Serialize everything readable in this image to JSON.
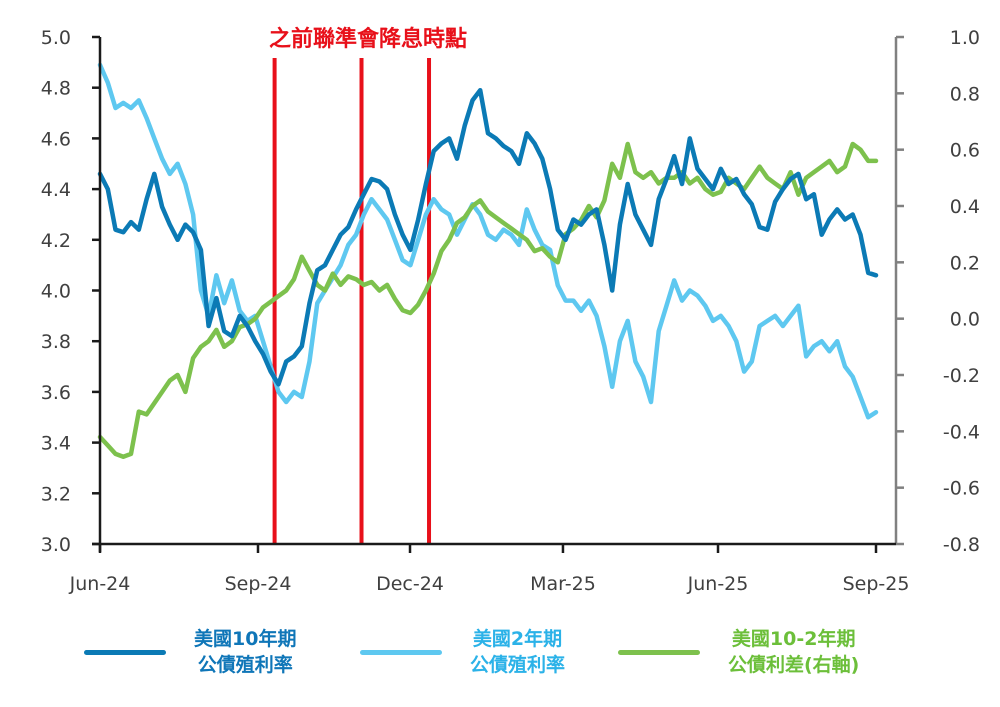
{
  "chart_data": {
    "type": "line",
    "title": "",
    "annotation": "之前聯準會降息時點",
    "xlabel": "",
    "ylabel_left": "",
    "ylabel_right": "",
    "x_ticks": [
      "Jun-24",
      "Sep-24",
      "Dec-24",
      "Mar-25",
      "Jun-25",
      "Sep-25"
    ],
    "y_left": {
      "range": [
        3.0,
        5.0
      ],
      "ticks": [
        "5.0",
        "4.8",
        "4.6",
        "4.4",
        "4.2",
        "4.0",
        "3.8",
        "3.6",
        "3.4",
        "3.2",
        "3.0"
      ]
    },
    "y_right": {
      "range": [
        -0.8,
        1.0
      ],
      "ticks": [
        "1.0",
        "0.8",
        "0.6",
        "0.4",
        "0.2",
        "0.0",
        "-0.2",
        "-0.4",
        "-0.6",
        "-0.8"
      ]
    },
    "fed_cut_markers": [
      "Sep-24 (mid)",
      "Nov-24 (early)",
      "Dec-24 (mid)"
    ],
    "fed_cut_marker_t": [
      0.225,
      0.337,
      0.424
    ],
    "grid": false,
    "legend_position": "bottom",
    "series": [
      {
        "name": "美國10年期公債殖利率",
        "axis": "left",
        "color": "#0b7ab5",
        "t": [
          0.0,
          0.01,
          0.02,
          0.03,
          0.04,
          0.05,
          0.06,
          0.07,
          0.08,
          0.09,
          0.1,
          0.11,
          0.12,
          0.13,
          0.14,
          0.15,
          0.16,
          0.17,
          0.18,
          0.19,
          0.2,
          0.21,
          0.22,
          0.23,
          0.24,
          0.25,
          0.26,
          0.27,
          0.28,
          0.29,
          0.3,
          0.31,
          0.32,
          0.33,
          0.34,
          0.35,
          0.36,
          0.37,
          0.38,
          0.39,
          0.4,
          0.41,
          0.42,
          0.43,
          0.44,
          0.45,
          0.46,
          0.47,
          0.48,
          0.49,
          0.5,
          0.51,
          0.52,
          0.53,
          0.54,
          0.55,
          0.56,
          0.57,
          0.58,
          0.59,
          0.6,
          0.61,
          0.62,
          0.63,
          0.64,
          0.65,
          0.66,
          0.67,
          0.68,
          0.69,
          0.7,
          0.71,
          0.72,
          0.73,
          0.74,
          0.75,
          0.76,
          0.77,
          0.78,
          0.79,
          0.8,
          0.81,
          0.82,
          0.83,
          0.84,
          0.85,
          0.86,
          0.87,
          0.88,
          0.89,
          0.9,
          0.91,
          0.92,
          0.93,
          0.94,
          0.95,
          0.96,
          0.97,
          0.98,
          0.99,
          1.0
        ],
        "values": [
          4.46,
          4.4,
          4.24,
          4.23,
          4.27,
          4.24,
          4.36,
          4.46,
          4.33,
          4.26,
          4.2,
          4.26,
          4.23,
          4.16,
          3.86,
          3.97,
          3.84,
          3.82,
          3.9,
          3.86,
          3.8,
          3.75,
          3.68,
          3.63,
          3.72,
          3.74,
          3.78,
          3.95,
          4.08,
          4.1,
          4.16,
          4.22,
          4.25,
          4.32,
          4.38,
          4.44,
          4.43,
          4.4,
          4.3,
          4.22,
          4.16,
          4.28,
          4.42,
          4.55,
          4.58,
          4.6,
          4.52,
          4.65,
          4.75,
          4.79,
          4.62,
          4.6,
          4.57,
          4.55,
          4.5,
          4.62,
          4.58,
          4.52,
          4.4,
          4.24,
          4.2,
          4.28,
          4.26,
          4.3,
          4.32,
          4.18,
          4.0,
          4.26,
          4.42,
          4.3,
          4.24,
          4.18,
          4.36,
          4.44,
          4.53,
          4.42,
          4.6,
          4.48,
          4.44,
          4.4,
          4.48,
          4.42,
          4.44,
          4.38,
          4.34,
          4.25,
          4.24,
          4.35,
          4.4,
          4.44,
          4.46,
          4.36,
          4.38,
          4.22,
          4.28,
          4.32,
          4.28,
          4.3,
          4.22,
          4.07,
          4.06
        ]
      },
      {
        "name": "美國2年期公債殖利率",
        "axis": "left",
        "color": "#5ec8f0",
        "t": [
          0.0,
          0.01,
          0.02,
          0.03,
          0.04,
          0.05,
          0.06,
          0.07,
          0.08,
          0.09,
          0.1,
          0.11,
          0.12,
          0.13,
          0.14,
          0.15,
          0.16,
          0.17,
          0.18,
          0.19,
          0.2,
          0.21,
          0.22,
          0.23,
          0.24,
          0.25,
          0.26,
          0.27,
          0.28,
          0.29,
          0.3,
          0.31,
          0.32,
          0.33,
          0.34,
          0.35,
          0.36,
          0.37,
          0.38,
          0.39,
          0.4,
          0.41,
          0.42,
          0.43,
          0.44,
          0.45,
          0.46,
          0.47,
          0.48,
          0.49,
          0.5,
          0.51,
          0.52,
          0.53,
          0.54,
          0.55,
          0.56,
          0.57,
          0.58,
          0.59,
          0.6,
          0.61,
          0.62,
          0.63,
          0.64,
          0.65,
          0.66,
          0.67,
          0.68,
          0.69,
          0.7,
          0.71,
          0.72,
          0.73,
          0.74,
          0.75,
          0.76,
          0.77,
          0.78,
          0.79,
          0.8,
          0.81,
          0.82,
          0.83,
          0.84,
          0.85,
          0.86,
          0.87,
          0.88,
          0.89,
          0.9,
          0.91,
          0.92,
          0.93,
          0.94,
          0.95,
          0.96,
          0.97,
          0.98,
          0.99,
          1.0
        ],
        "values": [
          4.89,
          4.82,
          4.72,
          4.74,
          4.72,
          4.75,
          4.68,
          4.6,
          4.52,
          4.46,
          4.5,
          4.42,
          4.3,
          4.0,
          3.9,
          4.06,
          3.95,
          4.04,
          3.92,
          3.88,
          3.9,
          3.8,
          3.7,
          3.6,
          3.56,
          3.6,
          3.58,
          3.72,
          3.95,
          4.0,
          4.05,
          4.1,
          4.18,
          4.22,
          4.3,
          4.36,
          4.32,
          4.28,
          4.2,
          4.12,
          4.1,
          4.2,
          4.3,
          4.36,
          4.32,
          4.3,
          4.22,
          4.28,
          4.34,
          4.3,
          4.22,
          4.2,
          4.24,
          4.22,
          4.18,
          4.32,
          4.24,
          4.18,
          4.16,
          4.02,
          3.96,
          3.96,
          3.92,
          3.96,
          3.9,
          3.78,
          3.62,
          3.8,
          3.88,
          3.72,
          3.66,
          3.56,
          3.84,
          3.94,
          4.04,
          3.96,
          4.0,
          3.98,
          3.94,
          3.88,
          3.9,
          3.86,
          3.8,
          3.68,
          3.72,
          3.86,
          3.88,
          3.9,
          3.86,
          3.9,
          3.94,
          3.74,
          3.78,
          3.8,
          3.76,
          3.8,
          3.7,
          3.66,
          3.58,
          3.5,
          3.52
        ]
      },
      {
        "name": "美國10-2年期公債利差(右軸)",
        "axis": "right",
        "color": "#7dc14d",
        "t": [
          0.0,
          0.01,
          0.02,
          0.03,
          0.04,
          0.05,
          0.06,
          0.07,
          0.08,
          0.09,
          0.1,
          0.11,
          0.12,
          0.13,
          0.14,
          0.15,
          0.16,
          0.17,
          0.18,
          0.19,
          0.2,
          0.21,
          0.22,
          0.23,
          0.24,
          0.25,
          0.26,
          0.27,
          0.28,
          0.29,
          0.3,
          0.31,
          0.32,
          0.33,
          0.34,
          0.35,
          0.36,
          0.37,
          0.38,
          0.39,
          0.4,
          0.41,
          0.42,
          0.43,
          0.44,
          0.45,
          0.46,
          0.47,
          0.48,
          0.49,
          0.5,
          0.51,
          0.52,
          0.53,
          0.54,
          0.55,
          0.56,
          0.57,
          0.58,
          0.59,
          0.6,
          0.61,
          0.62,
          0.63,
          0.64,
          0.65,
          0.66,
          0.67,
          0.68,
          0.69,
          0.7,
          0.71,
          0.72,
          0.73,
          0.74,
          0.75,
          0.76,
          0.77,
          0.78,
          0.79,
          0.8,
          0.81,
          0.82,
          0.83,
          0.84,
          0.85,
          0.86,
          0.87,
          0.88,
          0.89,
          0.9,
          0.91,
          0.92,
          0.93,
          0.94,
          0.95,
          0.96,
          0.97,
          0.98,
          0.99,
          1.0
        ],
        "values": [
          -0.42,
          -0.45,
          -0.48,
          -0.49,
          -0.48,
          -0.33,
          -0.34,
          -0.3,
          -0.26,
          -0.22,
          -0.2,
          -0.26,
          -0.14,
          -0.1,
          -0.08,
          -0.04,
          -0.1,
          -0.08,
          -0.03,
          -0.02,
          0.0,
          0.04,
          0.06,
          0.08,
          0.1,
          0.14,
          0.22,
          0.17,
          0.12,
          0.1,
          0.16,
          0.12,
          0.15,
          0.14,
          0.12,
          0.13,
          0.1,
          0.12,
          0.07,
          0.03,
          0.02,
          0.05,
          0.1,
          0.16,
          0.24,
          0.28,
          0.34,
          0.36,
          0.4,
          0.42,
          0.38,
          0.36,
          0.34,
          0.32,
          0.3,
          0.28,
          0.24,
          0.25,
          0.22,
          0.2,
          0.3,
          0.32,
          0.35,
          0.4,
          0.36,
          0.42,
          0.55,
          0.5,
          0.62,
          0.52,
          0.5,
          0.52,
          0.48,
          0.5,
          0.5,
          0.52,
          0.48,
          0.5,
          0.46,
          0.44,
          0.45,
          0.5,
          0.48,
          0.46,
          0.5,
          0.54,
          0.5,
          0.48,
          0.46,
          0.52,
          0.44,
          0.5,
          0.52,
          0.54,
          0.56,
          0.52,
          0.54,
          0.62,
          0.6,
          0.56,
          0.56
        ]
      }
    ]
  },
  "legend": {
    "items": [
      {
        "line1": "美國10年期",
        "line2": "公債殖利率",
        "color": "#0b7ab5",
        "text_color": "#0f76b8"
      },
      {
        "line1": "美國2年期",
        "line2": "公債殖利率",
        "color": "#5ec8f0",
        "text_color": "#2bb2e8"
      },
      {
        "line1": "美國10-2年期",
        "line2": "公債利差(右軸)",
        "color": "#7dc14d",
        "text_color": "#6cbf3a"
      }
    ]
  },
  "colors": {
    "annotation": "#e8101a",
    "left_axis": "#1a1a1a",
    "right_axis": "#808080"
  }
}
